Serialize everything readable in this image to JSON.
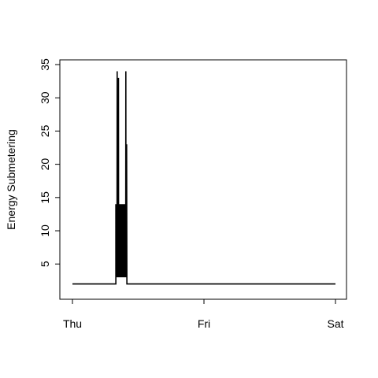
{
  "chart_data": {
    "type": "line",
    "title": "",
    "xlabel": "",
    "ylabel": "Energy Submetering",
    "x_tick_labels": [
      "Thu",
      "Fri",
      "Sat"
    ],
    "y_ticks": [
      5,
      10,
      15,
      20,
      25,
      30,
      35
    ],
    "xlim": [
      0,
      2
    ],
    "ylim": [
      1,
      35
    ],
    "grid": false,
    "legend": "none",
    "series": [
      {
        "color": "#000000",
        "x": [
          0.0,
          0.33,
          0.33,
          0.34,
          0.335,
          0.336,
          0.337,
          0.338,
          0.339,
          0.34,
          0.341,
          0.342,
          0.343,
          0.344,
          0.345,
          0.346,
          0.347,
          0.348,
          0.349,
          0.35,
          0.351,
          0.352,
          0.353,
          0.354,
          0.355,
          0.356,
          0.357,
          0.358,
          0.359,
          0.36,
          0.361,
          0.362,
          0.363,
          0.364,
          0.365,
          0.366,
          0.367,
          0.368,
          0.369,
          0.37,
          0.371,
          0.372,
          0.373,
          0.374,
          0.375,
          0.376,
          0.377,
          0.378,
          0.379,
          0.38,
          0.381,
          0.382,
          0.383,
          0.384,
          0.385,
          0.386,
          0.387,
          0.388,
          0.389,
          0.39,
          0.391,
          0.392,
          0.393,
          0.394,
          0.395,
          0.396,
          0.397,
          0.398,
          0.399,
          0.4,
          0.401,
          0.402,
          0.403,
          0.404,
          0.405,
          0.406,
          0.407,
          0.408,
          0.409,
          0.41,
          0.412,
          0.414,
          0.416,
          0.418,
          0.42,
          2.0
        ],
        "y": [
          2,
          2,
          14,
          3,
          14,
          3,
          14,
          3,
          14,
          34,
          3,
          14,
          3,
          14,
          3,
          14,
          3,
          14,
          3,
          33,
          3,
          14,
          3,
          14,
          3,
          14,
          3,
          14,
          3,
          14,
          3,
          14,
          3,
          14,
          3,
          14,
          3,
          14,
          3,
          14,
          3,
          14,
          3,
          14,
          3,
          14,
          3,
          14,
          3,
          14,
          3,
          14,
          3,
          14,
          3,
          14,
          3,
          14,
          3,
          14,
          3,
          14,
          3,
          14,
          3,
          14,
          3,
          14,
          3,
          14,
          3,
          14,
          3,
          14,
          3,
          34,
          3,
          14,
          3,
          14,
          23,
          2,
          2,
          2,
          2,
          2
        ]
      }
    ]
  }
}
